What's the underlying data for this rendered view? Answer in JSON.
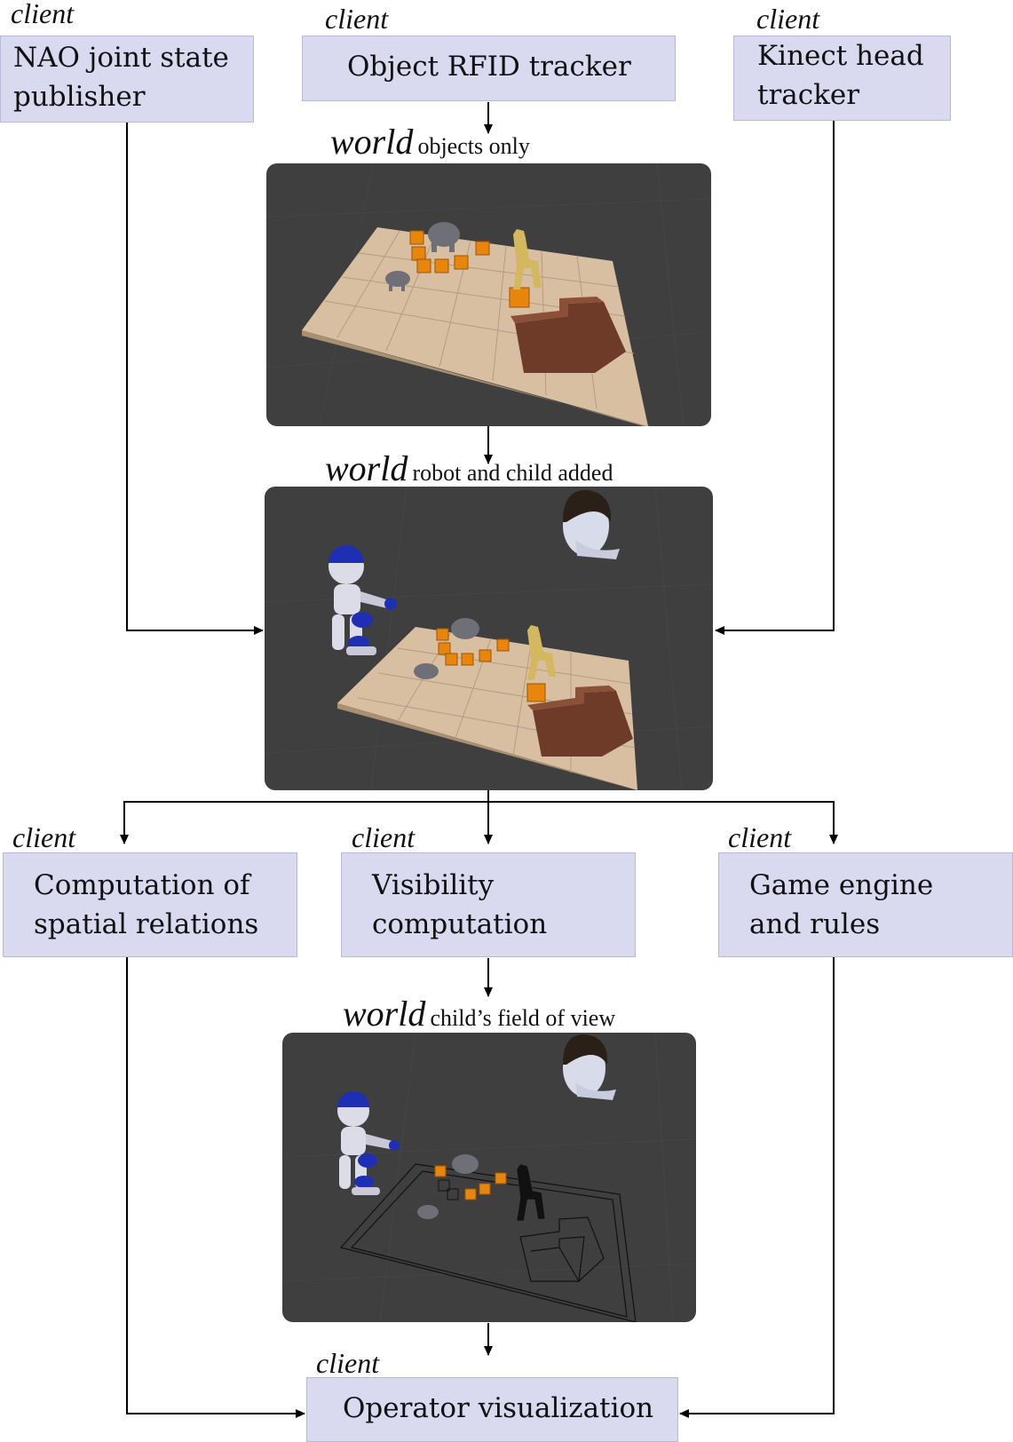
{
  "client_label": "client",
  "world_label": "world",
  "inputs": {
    "nao": [
      "NAO joint state",
      "publisher"
    ],
    "rfid": [
      "Object RFID tracker"
    ],
    "kinect": [
      "Kinect head",
      "tracker"
    ]
  },
  "worlds": {
    "objects": "objects only",
    "robot_child": "robot and child added",
    "fov": "child’s field of view"
  },
  "processors": {
    "spatial": [
      "Computation of",
      "spatial relations"
    ],
    "visibility": [
      "Visibility",
      "computation"
    ],
    "game": [
      "Game engine",
      "and rules"
    ]
  },
  "output": {
    "operator": [
      "Operator visualization"
    ]
  },
  "colors": {
    "box_fill": "#d9d9f0",
    "panel_bg": "#3f3f3f",
    "board": "#d8bfa2",
    "cube": "#e8860c",
    "wall": "#7a4632",
    "robot_blue": "#1f2fb5"
  },
  "icons": [
    "elephant",
    "giraffe",
    "cube",
    "nao-robot",
    "child-head"
  ]
}
